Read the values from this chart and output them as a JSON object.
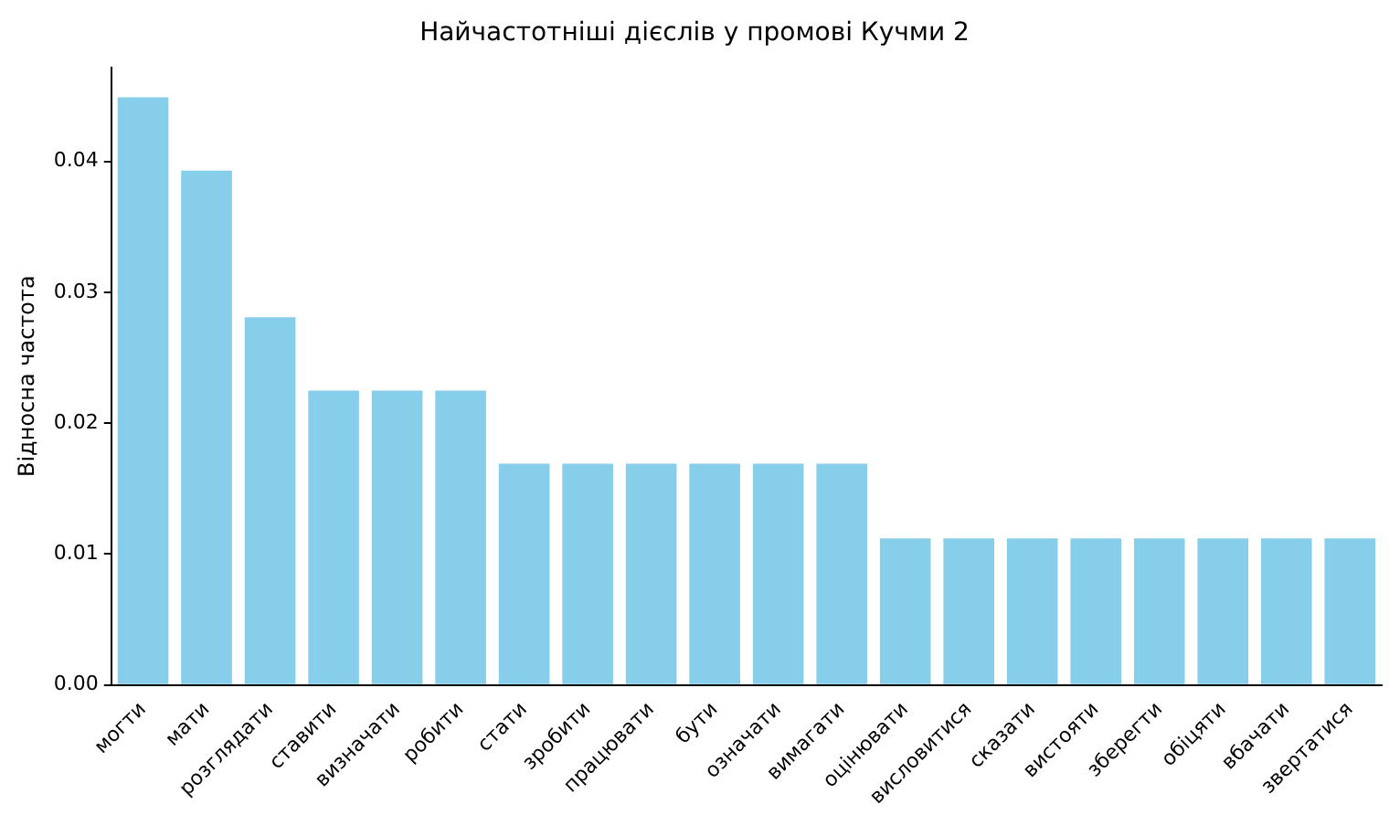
{
  "chart_data": {
    "type": "bar",
    "title": "Найчастотніші дієслів у промові Кучми 2",
    "ylabel": "Відносна частота",
    "categories": [
      "могти",
      "мати",
      "розглядати",
      "ставити",
      "визначати",
      "робити",
      "стати",
      "зробити",
      "працювати",
      "бути",
      "означати",
      "вимагати",
      "оцінювати",
      "висловитися",
      "сказати",
      "вистояти",
      "зберегти",
      "обіцяти",
      "вбачати",
      "звертатися"
    ],
    "values": [
      0.0449,
      0.0393,
      0.0281,
      0.0225,
      0.0225,
      0.0225,
      0.0169,
      0.0169,
      0.0169,
      0.0169,
      0.0169,
      0.0169,
      0.0112,
      0.0112,
      0.0112,
      0.0112,
      0.0112,
      0.0112,
      0.0112,
      0.0112
    ],
    "color": "#87ceeb",
    "ylim": [
      0,
      0.0472
    ],
    "yticks": [
      {
        "value": 0,
        "label": "0.00"
      },
      {
        "value": 0.01,
        "label": "0.01"
      },
      {
        "value": 0.02,
        "label": "0.02"
      },
      {
        "value": 0.03,
        "label": "0.03"
      },
      {
        "value": 0.04,
        "label": "0.04"
      }
    ],
    "grid": false,
    "legend": false
  }
}
